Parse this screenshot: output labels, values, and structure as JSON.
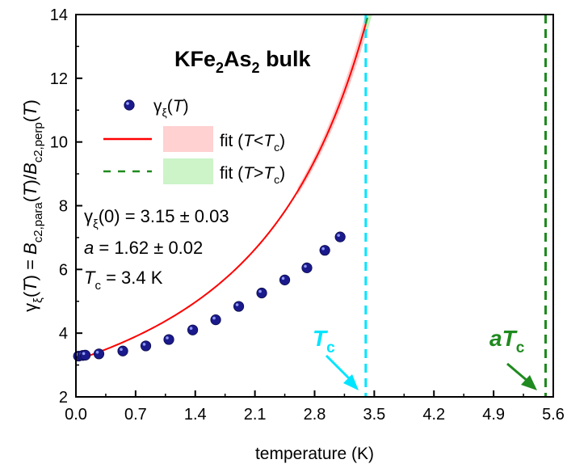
{
  "chart_data": {
    "type": "scatter",
    "title": "",
    "xlabel": "temperature (K)",
    "ylabel_parts": [
      "γ",
      "ξ",
      "(",
      "T",
      ") = ",
      "B",
      "c2,para",
      "(",
      "T",
      ")/",
      "B",
      "c2,perp",
      "(",
      "T",
      ")"
    ],
    "xlim": [
      0.0,
      5.6
    ],
    "ylim": [
      2,
      14
    ],
    "xticks": [
      0.0,
      0.7,
      1.4,
      2.1,
      2.8,
      3.5,
      4.2,
      4.9,
      5.6
    ],
    "xtick_labels": [
      "0.0",
      "0.7",
      "1.4",
      "2.1",
      "2.8",
      "3.5",
      "4.2",
      "4.9",
      "5.6"
    ],
    "yticks": [
      2,
      4,
      6,
      8,
      10,
      12,
      14
    ],
    "ytick_labels": [
      "2",
      "4",
      "6",
      "8",
      "10",
      "12",
      "14"
    ],
    "grid": false,
    "sample_label_parts": [
      "KFe",
      "2",
      "As",
      "2",
      " bulk"
    ],
    "legend": [
      {
        "name_parts": [
          "γ",
          "ξ",
          "(",
          "T",
          ")"
        ],
        "style": "marker",
        "color": "#1a1a8c"
      },
      {
        "name_parts": [
          "fit (",
          "T",
          "<",
          "T",
          "c",
          ")"
        ],
        "style": "solid",
        "color": "#ff0000",
        "band_color": "#ffb3b3"
      },
      {
        "name_parts": [
          "fit (",
          "T",
          ">",
          "T",
          "c",
          ")"
        ],
        "style": "dashed",
        "color": "#1f8a1f",
        "band_color": "#b6f0b0"
      }
    ],
    "parameters": [
      {
        "parts": [
          "γ",
          "ξ",
          "(0) = 3.15 ± 0.03"
        ]
      },
      {
        "parts": [
          "a",
          " = 1.62 ± 0.02"
        ]
      },
      {
        "parts": [
          "T",
          "c",
          " = 3.4 K"
        ]
      }
    ],
    "series": [
      {
        "name": "γξ(T)",
        "type": "scatter",
        "color": "#1a1a8c",
        "x": [
          0.03,
          0.08,
          0.11,
          0.27,
          0.55,
          0.82,
          1.09,
          1.37,
          1.64,
          1.91,
          2.18,
          2.45,
          2.71,
          2.92,
          3.1
        ],
        "y": [
          3.28,
          3.3,
          3.31,
          3.35,
          3.44,
          3.6,
          3.8,
          4.1,
          4.42,
          4.84,
          5.26,
          5.67,
          6.05,
          6.6,
          7.02
        ]
      }
    ],
    "fit": {
      "gamma0": 3.15,
      "a": 1.62,
      "Tc": 3.4,
      "x_end": 5.45,
      "low_color": "#ff0000",
      "low_band_color": "#ffb3b3",
      "high_color": "#1f8a1f",
      "high_band_color": "#b6f0b0"
    },
    "vertical_lines": [
      {
        "x": 3.4,
        "color": "#00e5ff",
        "label_parts": [
          "T",
          "c"
        ]
      },
      {
        "x": 5.51,
        "color": "#1f8a1f",
        "label_parts": [
          "aT",
          "c"
        ]
      }
    ]
  }
}
